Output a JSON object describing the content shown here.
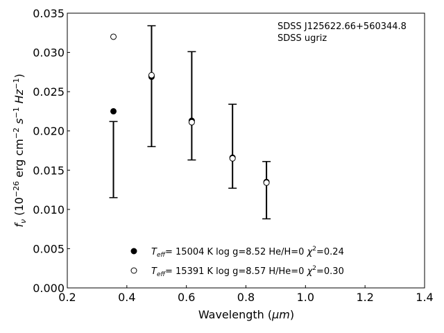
{
  "chart_data": {
    "type": "scatter",
    "xlabel_prefix": "Wavelength (",
    "xlabel_unit": "μm",
    "xlabel_suffix": ")",
    "ylabel_prefix": "f",
    "ylabel_sub": "ν",
    "ylabel_mid": " (10",
    "ylabel_exp": "−26",
    "ylabel_unit": " erg cm",
    "ylabel_unit_exp1": "−2",
    "ylabel_unit2": " s",
    "ylabel_unit_exp2": "−1",
    "ylabel_unit3": " Hz",
    "ylabel_unit_exp3": "−1",
    "ylabel_close": ")",
    "xlim": [
      0.2,
      1.4
    ],
    "ylim": [
      0.0,
      0.035
    ],
    "x_ticks": [
      "0.2",
      "0.4",
      "0.6",
      "0.8",
      "1.0",
      "1.2",
      "1.4"
    ],
    "y_ticks": [
      "0.000",
      "0.005",
      "0.010",
      "0.015",
      "0.020",
      "0.025",
      "0.030",
      "0.035"
    ],
    "annotations": [
      "SDSS J125622.66+560344.8",
      "SDSS ugriz"
    ],
    "observed": {
      "x": [
        0.355,
        0.483,
        0.618,
        0.755,
        0.869
      ],
      "lower": [
        0.0115,
        0.018,
        0.0163,
        0.0127,
        0.0088
      ],
      "upper": [
        0.0212,
        0.0334,
        0.0301,
        0.0234,
        0.0161
      ]
    },
    "series": [
      {
        "name": "T_eff= 15004 K  log g=8.52  He/H=0  χ²=0.24",
        "marker": "filled",
        "x": [
          0.355,
          0.483,
          0.618,
          0.755,
          0.869
        ],
        "y": [
          0.0225,
          0.0269,
          0.0213,
          0.0166,
          0.0135
        ]
      },
      {
        "name": "T_eff= 15391 K  log g=8.57  H/He=0  χ²=0.30",
        "marker": "open",
        "x": [
          0.355,
          0.483,
          0.618,
          0.755,
          0.869
        ],
        "y": [
          0.032,
          0.0271,
          0.0211,
          0.0165,
          0.0134
        ]
      }
    ],
    "legend": [
      {
        "marker": "filled",
        "teff": "= 15004 K  log g=8.52  He/H=0  ",
        "chi": "=0.24"
      },
      {
        "marker": "open",
        "teff": "= 15391 K  log g=8.57  H/He=0  ",
        "chi": "=0.30"
      }
    ],
    "legend_placement": "lower-center",
    "grid": false,
    "colors": {
      "marker": "#000000",
      "axes": "#000000",
      "background": "#ffffff"
    }
  }
}
